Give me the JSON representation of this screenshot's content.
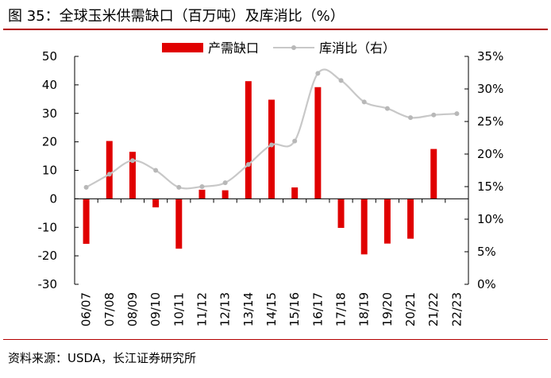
{
  "figure": {
    "title": "图  35：全球玉米供需缺口（百万吨）及库消比（%）",
    "source": "资料来源：USDA，长江证券研究所"
  },
  "colors": {
    "bar": "#e00000",
    "line": "#c8c8c8",
    "marker": "#b8b8b8",
    "axis": "#000000",
    "rule": "#b30000"
  },
  "chart_data": {
    "type": "bar",
    "categories": [
      "06/07",
      "07/08",
      "08/09",
      "09/10",
      "10/11",
      "11/12",
      "12/13",
      "13/14",
      "14/15",
      "15/16",
      "16/17",
      "17/18",
      "18/19",
      "19/20",
      "20/21",
      "21/22",
      "22/23"
    ],
    "series": [
      {
        "name": "产需缺口",
        "type": "bar",
        "axis": "left",
        "values": [
          -15.8,
          20.3,
          16.5,
          -3.0,
          -17.5,
          3.2,
          3.0,
          41.3,
          34.8,
          4.0,
          39.2,
          -10.2,
          -19.5,
          -15.7,
          -14.0,
          17.5,
          null
        ]
      },
      {
        "name": "库消比（右）",
        "type": "line",
        "axis": "right",
        "values": [
          14.9,
          16.9,
          19.0,
          17.5,
          14.9,
          15.0,
          15.6,
          18.4,
          21.4,
          22.0,
          32.4,
          31.3,
          28.0,
          27.0,
          25.6,
          26.0,
          26.2
        ]
      }
    ],
    "y_left": {
      "min": -30,
      "max": 50,
      "ticks": [
        50,
        40,
        30,
        20,
        10,
        0,
        -10,
        -20,
        -30
      ],
      "unit": "百万吨"
    },
    "y_right": {
      "min": 0,
      "max": 35,
      "ticks": [
        "35%",
        "30%",
        "25%",
        "20%",
        "15%",
        "10%",
        "5%",
        "0%"
      ]
    },
    "legend": [
      "产需缺口",
      "库消比（右）"
    ],
    "legend_labels": [
      "产需缺口",
      "库消比（右）"
    ],
    "legend_position": "top-center",
    "grid": false
  }
}
